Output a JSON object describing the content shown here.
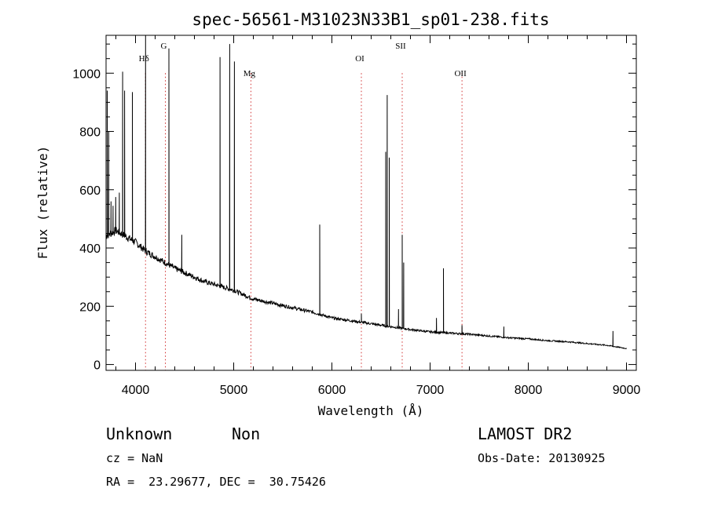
{
  "chart_data": {
    "type": "line",
    "title": "spec-56561-M31023N33B1_sp01-238.fits",
    "xlabel": "Wavelength (Å)",
    "ylabel": "Flux (relative)",
    "xlim": [
      3700,
      9100
    ],
    "ylim": [
      -20,
      1130
    ],
    "x_ticks": [
      4000,
      5000,
      6000,
      7000,
      8000,
      9000
    ],
    "y_ticks": [
      0,
      200,
      400,
      600,
      800,
      1000
    ],
    "grid": false,
    "continuum": [
      [
        3700,
        440
      ],
      [
        3800,
        460
      ],
      [
        3900,
        440
      ],
      [
        4000,
        420
      ],
      [
        4100,
        390
      ],
      [
        4200,
        370
      ],
      [
        4300,
        350
      ],
      [
        4400,
        330
      ],
      [
        4500,
        315
      ],
      [
        4600,
        300
      ],
      [
        4700,
        285
      ],
      [
        4800,
        275
      ],
      [
        4900,
        265
      ],
      [
        5000,
        255
      ],
      [
        5100,
        240
      ],
      [
        5200,
        225
      ],
      [
        5400,
        210
      ],
      [
        5600,
        195
      ],
      [
        5800,
        180
      ],
      [
        6000,
        160
      ],
      [
        6200,
        150
      ],
      [
        6400,
        140
      ],
      [
        6600,
        130
      ],
      [
        6800,
        120
      ],
      [
        7000,
        112
      ],
      [
        7200,
        108
      ],
      [
        7400,
        104
      ],
      [
        7600,
        98
      ],
      [
        7800,
        92
      ],
      [
        8000,
        88
      ],
      [
        8200,
        82
      ],
      [
        8400,
        78
      ],
      [
        8600,
        72
      ],
      [
        8800,
        66
      ],
      [
        9000,
        55
      ]
    ],
    "emission_lines": [
      {
        "x": 3712,
        "peak": 940
      },
      {
        "x": 3727,
        "peak": 800
      },
      {
        "x": 3750,
        "peak": 560
      },
      {
        "x": 3771,
        "peak": 545
      },
      {
        "x": 3798,
        "peak": 575
      },
      {
        "x": 3835,
        "peak": 590
      },
      {
        "x": 3869,
        "peak": 1005
      },
      {
        "x": 3889,
        "peak": 940
      },
      {
        "x": 3968,
        "peak": 935
      },
      {
        "x": 4102,
        "peak": 1130
      },
      {
        "x": 4340,
        "peak": 1085
      },
      {
        "x": 4471,
        "peak": 445
      },
      {
        "x": 4861,
        "peak": 1055
      },
      {
        "x": 4959,
        "peak": 1100
      },
      {
        "x": 5007,
        "peak": 1040
      },
      {
        "x": 5876,
        "peak": 480
      },
      {
        "x": 6300,
        "peak": 175
      },
      {
        "x": 6548,
        "peak": 730
      },
      {
        "x": 6563,
        "peak": 925
      },
      {
        "x": 6584,
        "peak": 710
      },
      {
        "x": 6678,
        "peak": 190
      },
      {
        "x": 6716,
        "peak": 445
      },
      {
        "x": 6731,
        "peak": 350
      },
      {
        "x": 7065,
        "peak": 160
      },
      {
        "x": 7136,
        "peak": 330
      },
      {
        "x": 7325,
        "peak": 135
      },
      {
        "x": 7751,
        "peak": 130
      },
      {
        "x": 8862,
        "peak": 115
      }
    ],
    "reference_lines": [
      {
        "label": "Hδ",
        "x": 4102
      },
      {
        "label": "G",
        "x": 4304
      },
      {
        "label": "Mg",
        "x": 5175
      },
      {
        "label": "OI",
        "x": 6300
      },
      {
        "label": "SII",
        "x": 6716
      },
      {
        "label": "OII",
        "x": 7325
      }
    ],
    "reference_line_color": "#d23030"
  },
  "info": {
    "object_class": "Unknown",
    "subclass": "Non",
    "survey": "LAMOST DR2",
    "redshift": "cz = NaN",
    "obs_date": "Obs-Date: 20130925",
    "coords": "RA =  23.29677, DEC =  30.75426"
  }
}
